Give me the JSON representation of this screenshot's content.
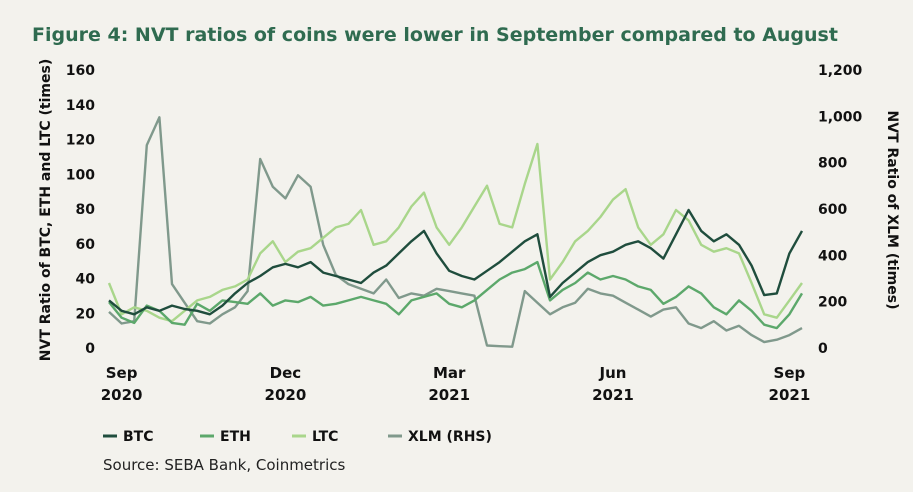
{
  "chart_data": {
    "type": "line",
    "title": "Figure 4: NVT ratios of coins were lower in September compared to August",
    "ylabel": "NVT Ratio of BTC, ETH and LTC (times)",
    "y2label": "NVT Ratio of XLM (times)",
    "source": "Source: SEBA Bank, Coinmetrics",
    "categories": [
      null,
      "Sep 2020",
      null,
      null,
      null,
      null,
      null,
      null,
      null,
      null,
      null,
      null,
      null,
      null,
      "Dec 2020",
      null,
      null,
      null,
      null,
      null,
      null,
      null,
      null,
      null,
      null,
      null,
      null,
      "Mar 2021",
      null,
      null,
      null,
      null,
      null,
      null,
      null,
      null,
      null,
      null,
      null,
      null,
      "Jun 2021",
      null,
      null,
      null,
      null,
      null,
      null,
      null,
      null,
      null,
      null,
      null,
      null,
      null,
      "Sep 2021",
      null
    ],
    "ylim": [
      0,
      160
    ],
    "yticks": [
      0,
      20,
      40,
      60,
      80,
      100,
      120,
      140,
      160
    ],
    "y2lim": [
      0,
      1200
    ],
    "y2ticks": [
      0,
      200,
      400,
      600,
      800,
      {
        "value": 1000,
        "label": "1,000"
      },
      {
        "value": 1200,
        "label": "1,200"
      }
    ],
    "series": [
      {
        "name": "BTC",
        "color": "#1f4d3d",
        "values": [
          28,
          22,
          20,
          24,
          22,
          25,
          23,
          22,
          20,
          25,
          32,
          38,
          42,
          47,
          49,
          47,
          50,
          44,
          42,
          40,
          38,
          44,
          48,
          55,
          62,
          68,
          55,
          45,
          42,
          40,
          45,
          50,
          56,
          62,
          66,
          30,
          38,
          44,
          50,
          54,
          56,
          60,
          62,
          58,
          52,
          66,
          80,
          68,
          62,
          66,
          60,
          48,
          31,
          32,
          55,
          68
        ]
      },
      {
        "name": "ETH",
        "color": "#5ca86b",
        "values": [
          27,
          18,
          15,
          25,
          22,
          15,
          14,
          26,
          22,
          28,
          27,
          26,
          32,
          25,
          28,
          27,
          30,
          25,
          26,
          28,
          30,
          28,
          26,
          20,
          28,
          30,
          32,
          26,
          24,
          28,
          34,
          40,
          44,
          46,
          50,
          28,
          34,
          38,
          44,
          40,
          42,
          40,
          36,
          34,
          26,
          30,
          36,
          32,
          24,
          20,
          28,
          22,
          14,
          12,
          20,
          32
        ]
      },
      {
        "name": "LTC",
        "color": "#a9d68b",
        "values": [
          38,
          20,
          24,
          22,
          18,
          16,
          22,
          28,
          30,
          34,
          36,
          40,
          55,
          62,
          50,
          56,
          58,
          64,
          70,
          72,
          80,
          60,
          62,
          70,
          82,
          90,
          70,
          60,
          70,
          82,
          94,
          72,
          70,
          95,
          118,
          40,
          50,
          62,
          68,
          76,
          86,
          92,
          70,
          60,
          66,
          80,
          74,
          60,
          56,
          58,
          55,
          38,
          20,
          18,
          28,
          38
        ]
      },
      {
        "name": "XLM (RHS)",
        "color": "#80998c",
        "axis": "y2",
        "values": [
          160,
          110,
          120,
          880,
          1000,
          280,
          200,
          120,
          110,
          150,
          180,
          250,
          820,
          700,
          650,
          750,
          700,
          450,
          320,
          280,
          260,
          240,
          300,
          220,
          240,
          230,
          260,
          250,
          240,
          230,
          15,
          12,
          10,
          250,
          200,
          150,
          180,
          200,
          260,
          240,
          230,
          200,
          170,
          140,
          170,
          180,
          110,
          90,
          120,
          80,
          100,
          60,
          30,
          40,
          60,
          90
        ]
      }
    ]
  }
}
